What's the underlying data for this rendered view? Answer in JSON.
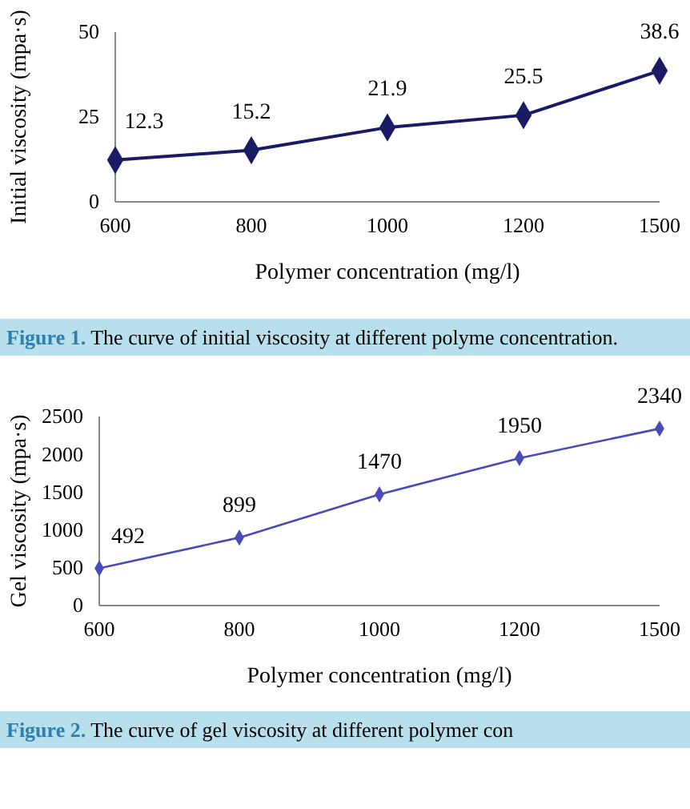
{
  "chart_data": [
    {
      "type": "line",
      "categories": [
        "600",
        "800",
        "1000",
        "1200",
        "1500"
      ],
      "values": [
        12.3,
        15.2,
        21.9,
        25.5,
        38.6
      ],
      "color": "#1a1a66",
      "marker": "diamond",
      "data_labels": true,
      "ylim": [
        0,
        50
      ],
      "yticks": [
        0,
        25,
        50
      ],
      "xlabel": "Polymer concentration (mg/l)",
      "ylabel": "Initial viscosity (mpa·s)",
      "annotations": [
        "Figure 1. The curve of initial viscosity at different polyme concentration."
      ]
    },
    {
      "type": "line",
      "categories": [
        "600",
        "800",
        "1000",
        "1200",
        "1500"
      ],
      "values": [
        492,
        899,
        1470,
        1950,
        2340
      ],
      "color": "#4a4ab8",
      "marker": "diamond",
      "data_labels": true,
      "ylim": [
        0,
        2500
      ],
      "yticks": [
        0,
        500,
        1000,
        1500,
        2000,
        2500
      ],
      "xlabel": "Polymer concentration (mg/l)",
      "ylabel": "Gel viscosity (mpa·s)",
      "annotations": [
        "Figure 2. The curve of gel viscosity at different polymer con"
      ]
    }
  ]
}
